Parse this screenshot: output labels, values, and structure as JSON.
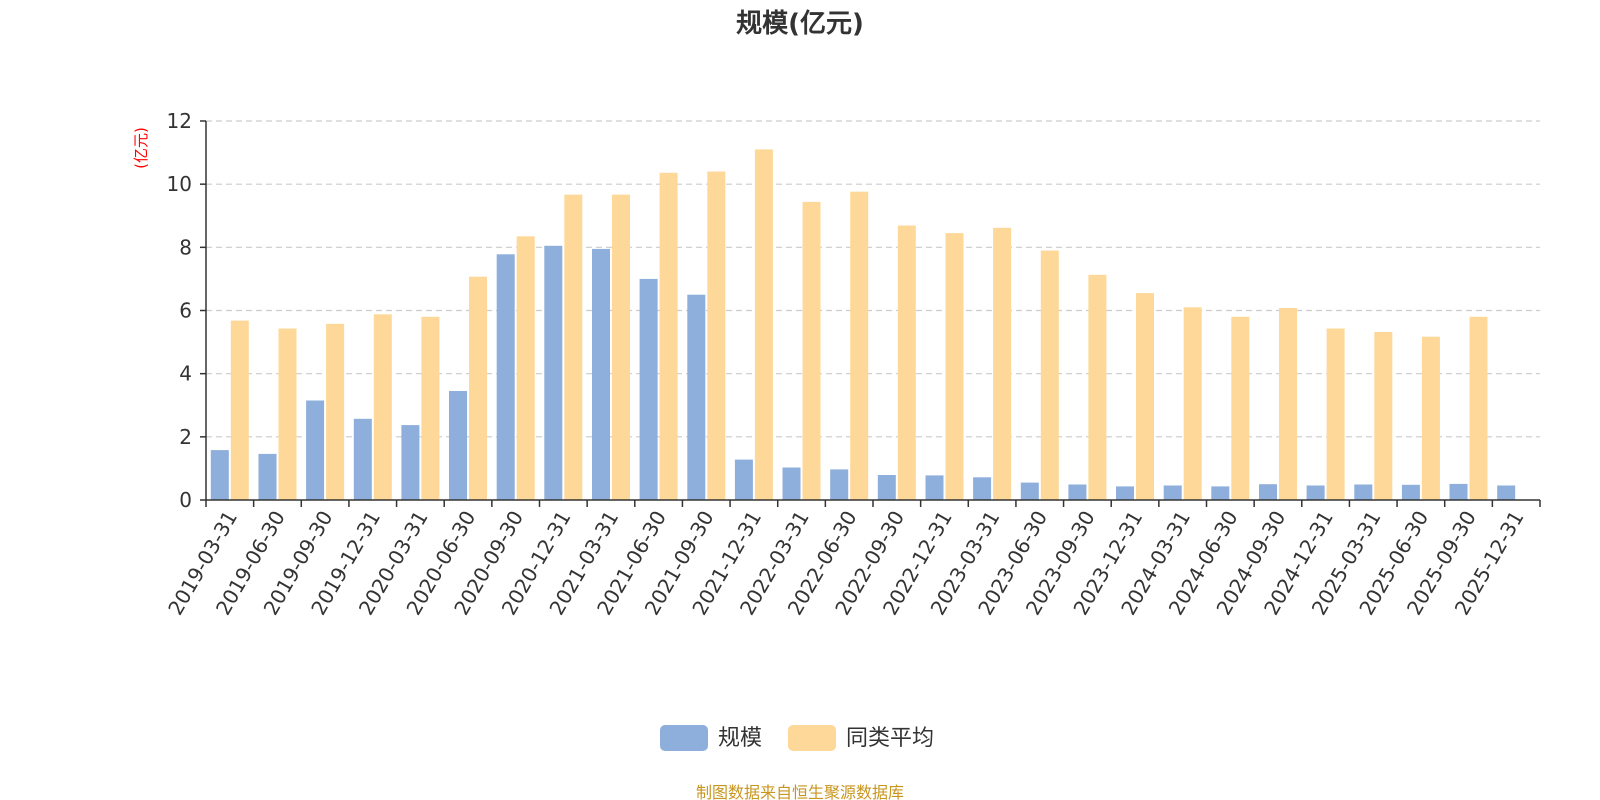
{
  "chart_data": {
    "type": "bar",
    "title": "规模(亿元)",
    "ylabel": "(亿元)",
    "ylim": [
      0,
      12
    ],
    "yticks": [
      0,
      2,
      4,
      6,
      8,
      10,
      12
    ],
    "grid": true,
    "legend_placement": "bottom-center",
    "categories": [
      "2019-03-31",
      "2019-06-30",
      "2019-09-30",
      "2019-12-31",
      "2020-03-31",
      "2020-06-30",
      "2020-09-30",
      "2020-12-31",
      "2021-03-31",
      "2021-06-30",
      "2021-09-30",
      "2021-12-31",
      "2022-03-31",
      "2022-06-30",
      "2022-09-30",
      "2022-12-31",
      "2023-03-31",
      "2023-06-30",
      "2023-09-30",
      "2023-12-31",
      "2024-03-31",
      "2024-06-30",
      "2024-09-30",
      "2024-12-31",
      "2025-03-31",
      "2025-06-30",
      "2025-09-30",
      "2025-12-31"
    ],
    "series": [
      {
        "name": "规模",
        "color": "#8eaedb",
        "values": [
          1.58,
          1.46,
          3.15,
          2.57,
          2.37,
          3.45,
          7.78,
          8.05,
          7.95,
          7.0,
          6.5,
          1.28,
          1.03,
          0.97,
          0.79,
          0.78,
          0.72,
          0.55,
          0.49,
          0.43,
          0.46,
          0.43,
          0.5,
          0.46,
          0.49,
          0.48,
          0.51,
          0.46
        ]
      },
      {
        "name": "同类平均",
        "color": "#fdd898",
        "values": [
          5.68,
          5.43,
          5.58,
          5.88,
          5.8,
          7.07,
          8.35,
          9.67,
          9.67,
          10.36,
          10.4,
          11.1,
          9.44,
          9.76,
          8.69,
          8.45,
          8.62,
          7.9,
          7.13,
          6.55,
          6.1,
          5.8,
          6.08,
          5.43,
          5.32,
          5.17,
          5.8,
          null
        ]
      }
    ],
    "source": "制图数据来自恒生聚源数据库"
  },
  "colors": {
    "axis": "#333333",
    "grid": "#cccccc",
    "unit": "#ff0000",
    "source": "#c8961e"
  }
}
